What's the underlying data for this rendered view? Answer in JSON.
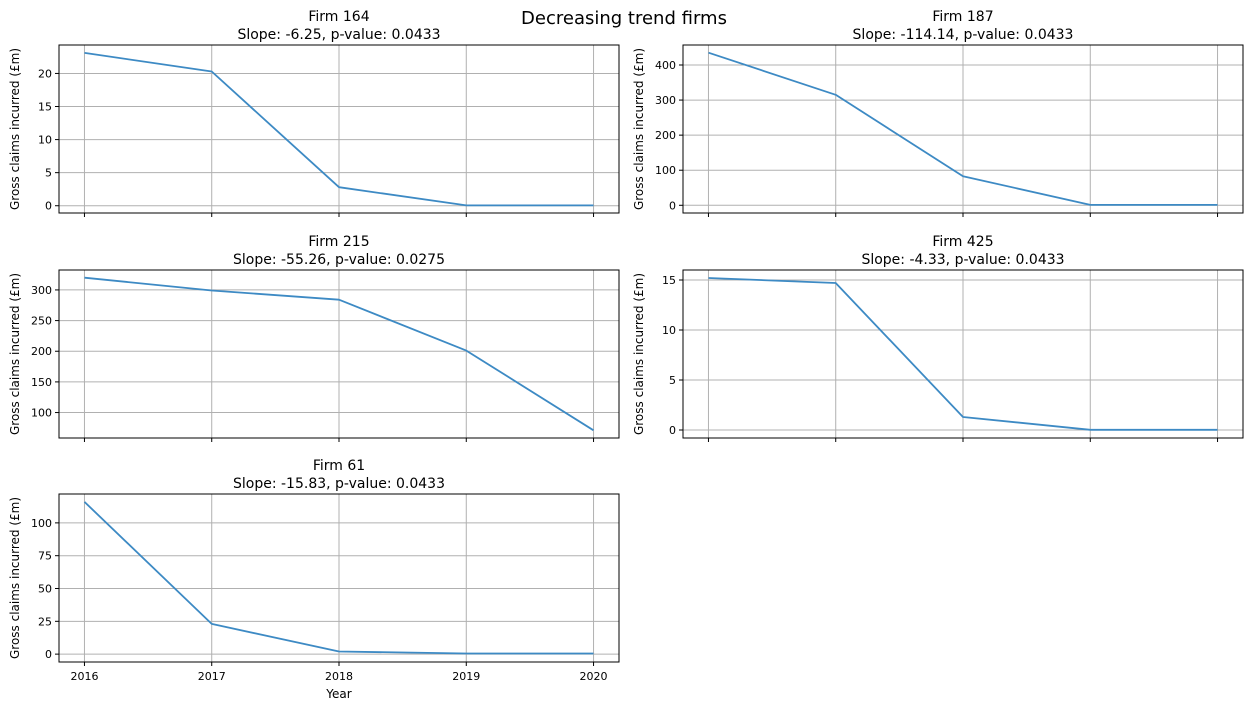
{
  "figure": {
    "suptitle": "Decreasing trend firms"
  },
  "colors": {
    "line": "#3d8ac4",
    "grid": "#b0b0b0",
    "axes": "#000000",
    "background": "#ffffff"
  },
  "chart_data": [
    {
      "type": "line",
      "title": "Firm 164",
      "subtitle": "Slope: -6.25, p-value: 0.0433",
      "xlabel": "",
      "ylabel": "Gross claims incurred (£m)",
      "x": [
        2016,
        2017,
        2018,
        2019,
        2020
      ],
      "y": [
        23.1,
        20.3,
        2.8,
        0.05,
        0.05
      ],
      "yticks": [
        0,
        5,
        10,
        15,
        20
      ],
      "ylim": [
        -1.1,
        24.3
      ],
      "xlim": [
        2015.8,
        2020.2
      ],
      "show_xtick_labels": false,
      "grid": true
    },
    {
      "type": "line",
      "title": "Firm 187",
      "subtitle": "Slope: -114.14, p-value: 0.0433",
      "xlabel": "",
      "ylabel": "Gross claims incurred (£m)",
      "x": [
        2016,
        2017,
        2018,
        2019,
        2020
      ],
      "y": [
        435,
        315,
        83,
        1,
        1
      ],
      "yticks": [
        0,
        100,
        200,
        300,
        400
      ],
      "ylim": [
        -22,
        457
      ],
      "xlim": [
        2015.8,
        2020.2
      ],
      "show_xtick_labels": false,
      "grid": true
    },
    {
      "type": "line",
      "title": "Firm 215",
      "subtitle": "Slope: -55.26, p-value: 0.0275",
      "xlabel": "",
      "ylabel": "Gross claims incurred (£m)",
      "x": [
        2016,
        2017,
        2018,
        2019,
        2020
      ],
      "y": [
        320,
        299,
        284,
        201,
        71
      ],
      "yticks": [
        100,
        150,
        200,
        250,
        300
      ],
      "ylim": [
        58.5,
        332.5
      ],
      "xlim": [
        2015.8,
        2020.2
      ],
      "show_xtick_labels": false,
      "grid": true
    },
    {
      "type": "line",
      "title": "Firm 425",
      "subtitle": "Slope: -4.33, p-value: 0.0433",
      "xlabel": "",
      "ylabel": "Gross claims incurred (£m)",
      "x": [
        2016,
        2017,
        2018,
        2019,
        2020
      ],
      "y": [
        15.2,
        14.7,
        1.3,
        0.02,
        0.02
      ],
      "yticks": [
        0,
        5,
        10,
        15
      ],
      "ylim": [
        -0.8,
        16.0
      ],
      "xlim": [
        2015.8,
        2020.2
      ],
      "show_xtick_labels": false,
      "grid": true
    },
    {
      "type": "line",
      "title": "Firm 61",
      "subtitle": "Slope: -15.83, p-value: 0.0433",
      "xlabel": "Year",
      "ylabel": "Gross claims incurred (£m)",
      "x": [
        2016,
        2017,
        2018,
        2019,
        2020
      ],
      "y": [
        116,
        23,
        2,
        0.5,
        0.5
      ],
      "yticks": [
        0,
        25,
        50,
        75,
        100
      ],
      "ylim": [
        -6,
        122
      ],
      "xlim": [
        2015.8,
        2020.2
      ],
      "xtick_labels": [
        "2016",
        "2017",
        "2018",
        "2019",
        "2020"
      ],
      "show_xtick_labels": true,
      "grid": true
    }
  ]
}
